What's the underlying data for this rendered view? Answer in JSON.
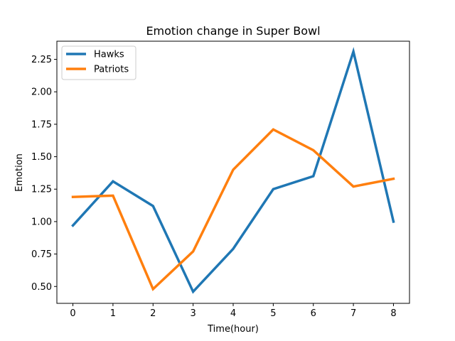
{
  "chart_data": {
    "type": "line",
    "title": "Emotion change in Super Bowl",
    "xlabel": "Time(hour)",
    "ylabel": "Emotion",
    "x": [
      0,
      1,
      2,
      3,
      4,
      5,
      6,
      7,
      8
    ],
    "x_ticks": [
      "0",
      "1",
      "2",
      "3",
      "4",
      "5",
      "6",
      "7",
      "8"
    ],
    "y_ticks": [
      "0.50",
      "0.75",
      "1.00",
      "1.25",
      "1.50",
      "1.75",
      "2.00",
      "2.25"
    ],
    "y_tick_values": [
      0.5,
      0.75,
      1.0,
      1.25,
      1.5,
      1.75,
      2.0,
      2.25
    ],
    "xlim": [
      -0.4,
      8.4
    ],
    "ylim": [
      0.37,
      2.39
    ],
    "grid": false,
    "legend_position": "top-left",
    "series": [
      {
        "name": "Hawks",
        "color": "#1f77b4",
        "values": [
          0.97,
          1.31,
          1.12,
          0.46,
          0.79,
          1.25,
          1.35,
          2.31,
          1.0
        ]
      },
      {
        "name": "Patriots",
        "color": "#ff7f0e",
        "values": [
          1.19,
          1.2,
          0.48,
          0.77,
          1.4,
          1.71,
          1.55,
          1.27,
          1.33
        ]
      }
    ]
  }
}
